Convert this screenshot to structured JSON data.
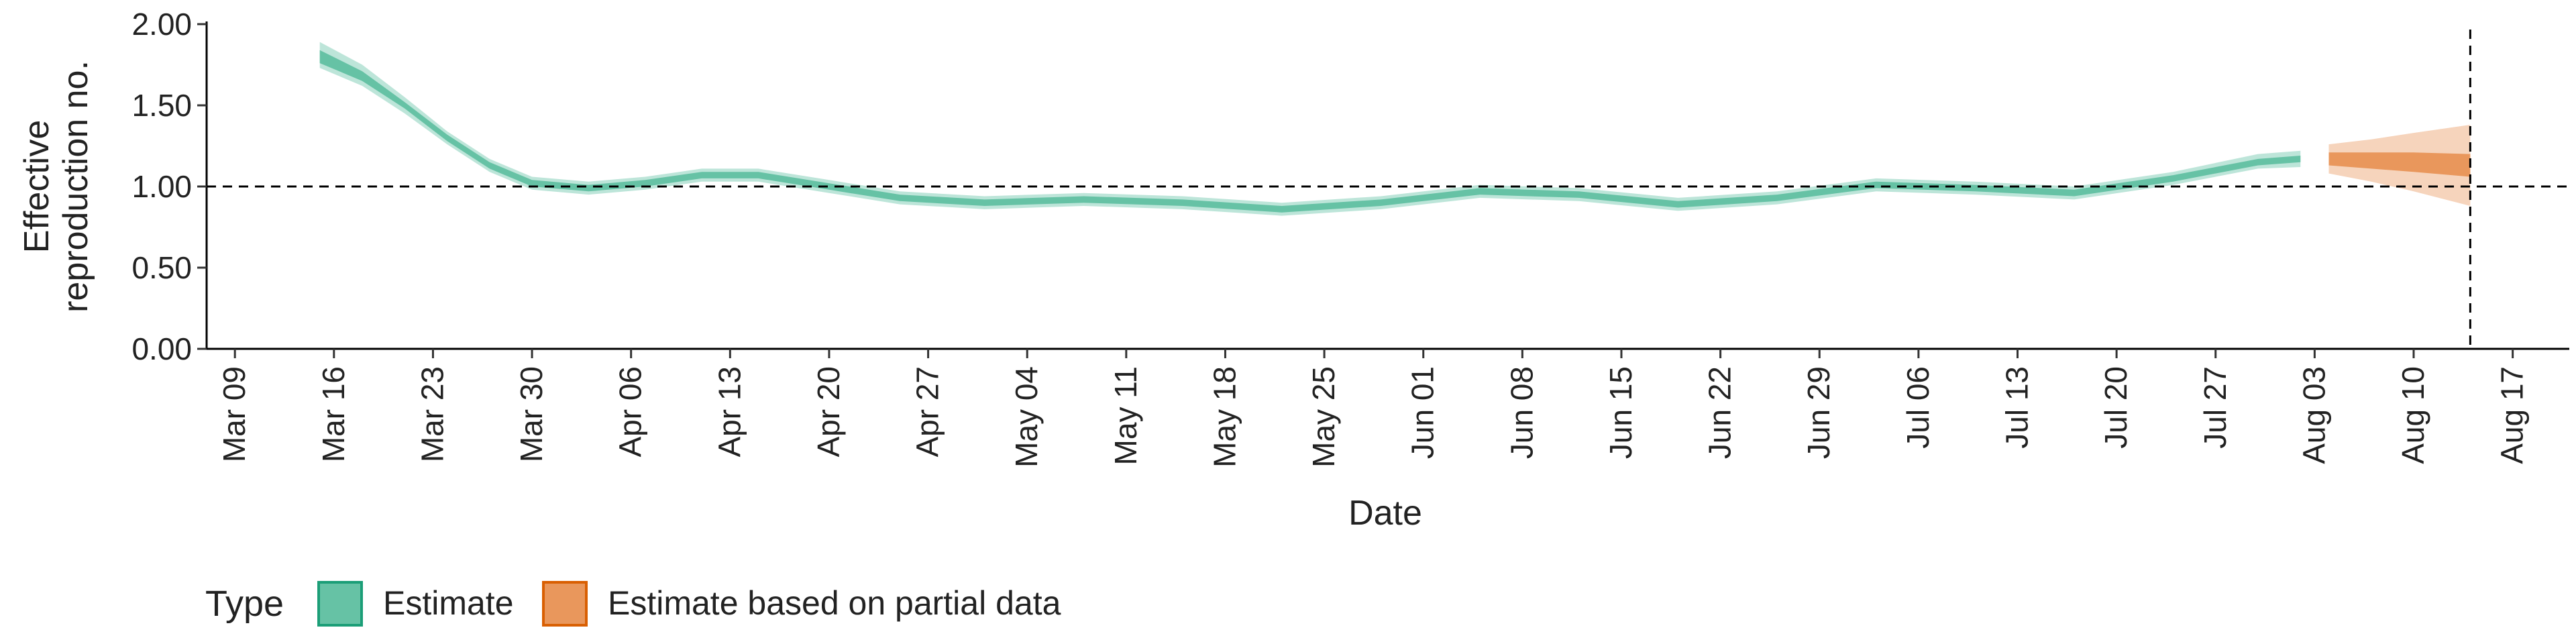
{
  "chart_data": {
    "type": "area",
    "title": "",
    "xlabel": "Date",
    "ylabel_lines": [
      "Effective",
      "reproduction no."
    ],
    "ylim": [
      0,
      2
    ],
    "y_ticks": [
      0,
      0.5,
      1,
      1.5,
      2
    ],
    "y_tick_labels": [
      "0.00",
      "0.50",
      "1.00",
      "1.50",
      "2.00"
    ],
    "xlim": [
      "2020-03-07",
      "2020-08-21"
    ],
    "x_ticks": [
      "2020-03-09",
      "2020-03-16",
      "2020-03-23",
      "2020-03-30",
      "2020-04-06",
      "2020-04-13",
      "2020-04-20",
      "2020-04-27",
      "2020-05-04",
      "2020-05-11",
      "2020-05-18",
      "2020-05-25",
      "2020-06-01",
      "2020-06-08",
      "2020-06-15",
      "2020-06-22",
      "2020-06-29",
      "2020-07-06",
      "2020-07-13",
      "2020-07-20",
      "2020-07-27",
      "2020-08-03",
      "2020-08-10",
      "2020-08-17"
    ],
    "x_tick_labels": [
      "Mar 09",
      "Mar 16",
      "Mar 23",
      "Mar 30",
      "Apr 06",
      "Apr 13",
      "Apr 20",
      "Apr 27",
      "May 04",
      "May 11",
      "May 18",
      "May 25",
      "Jun 01",
      "Jun 08",
      "Jun 15",
      "Jun 22",
      "Jun 29",
      "Jul 06",
      "Jul 13",
      "Jul 20",
      "Jul 27",
      "Aug 03",
      "Aug 10",
      "Aug 17"
    ],
    "reference_line_y": 1.0,
    "reference_line_x": "2020-08-14",
    "grid": false,
    "legend": {
      "title": "Type",
      "position": "bottom-left",
      "entries": [
        {
          "label": "Estimate",
          "fill": "#66c2a5",
          "stroke": "#1b9e77"
        },
        {
          "label": "Estimate based on partial data",
          "fill": "#e9975c",
          "stroke": "#d95f02"
        }
      ]
    },
    "series": [
      {
        "name": "Estimate",
        "color_inner": "#66c2a5",
        "color_outer": "#b2e0d2",
        "points": [
          {
            "x": "2020-03-15",
            "median": 1.8,
            "lo50": 1.76,
            "hi50": 1.84,
            "lo90": 1.73,
            "hi90": 1.89
          },
          {
            "x": "2020-03-18",
            "median": 1.68,
            "lo50": 1.65,
            "hi50": 1.71,
            "lo90": 1.62,
            "hi90": 1.75
          },
          {
            "x": "2020-03-21",
            "median": 1.5,
            "lo50": 1.48,
            "hi50": 1.52,
            "lo90": 1.45,
            "hi90": 1.55
          },
          {
            "x": "2020-03-24",
            "median": 1.3,
            "lo50": 1.28,
            "hi50": 1.32,
            "lo90": 1.26,
            "hi90": 1.34
          },
          {
            "x": "2020-03-27",
            "median": 1.13,
            "lo50": 1.11,
            "hi50": 1.15,
            "lo90": 1.09,
            "hi90": 1.17
          },
          {
            "x": "2020-03-30",
            "median": 1.02,
            "lo50": 1.0,
            "hi50": 1.04,
            "lo90": 0.98,
            "hi90": 1.06
          },
          {
            "x": "2020-04-03",
            "median": 0.99,
            "lo50": 0.97,
            "hi50": 1.01,
            "lo90": 0.95,
            "hi90": 1.03
          },
          {
            "x": "2020-04-07",
            "median": 1.02,
            "lo50": 1.0,
            "hi50": 1.04,
            "lo90": 0.98,
            "hi90": 1.06
          },
          {
            "x": "2020-04-11",
            "median": 1.07,
            "lo50": 1.05,
            "hi50": 1.09,
            "lo90": 1.03,
            "hi90": 1.11
          },
          {
            "x": "2020-04-15",
            "median": 1.07,
            "lo50": 1.05,
            "hi50": 1.09,
            "lo90": 1.03,
            "hi90": 1.11
          },
          {
            "x": "2020-04-20",
            "median": 1.0,
            "lo50": 0.98,
            "hi50": 1.02,
            "lo90": 0.96,
            "hi90": 1.04
          },
          {
            "x": "2020-04-25",
            "median": 0.93,
            "lo50": 0.91,
            "hi50": 0.95,
            "lo90": 0.89,
            "hi90": 0.97
          },
          {
            "x": "2020-05-01",
            "median": 0.9,
            "lo50": 0.88,
            "hi50": 0.92,
            "lo90": 0.86,
            "hi90": 0.94
          },
          {
            "x": "2020-05-08",
            "median": 0.92,
            "lo50": 0.9,
            "hi50": 0.94,
            "lo90": 0.88,
            "hi90": 0.96
          },
          {
            "x": "2020-05-15",
            "median": 0.9,
            "lo50": 0.88,
            "hi50": 0.92,
            "lo90": 0.86,
            "hi90": 0.94
          },
          {
            "x": "2020-05-22",
            "median": 0.86,
            "lo50": 0.84,
            "hi50": 0.88,
            "lo90": 0.82,
            "hi90": 0.9
          },
          {
            "x": "2020-05-29",
            "median": 0.9,
            "lo50": 0.88,
            "hi50": 0.92,
            "lo90": 0.86,
            "hi90": 0.94
          },
          {
            "x": "2020-06-05",
            "median": 0.97,
            "lo50": 0.95,
            "hi50": 0.99,
            "lo90": 0.93,
            "hi90": 1.01
          },
          {
            "x": "2020-06-12",
            "median": 0.95,
            "lo50": 0.93,
            "hi50": 0.97,
            "lo90": 0.91,
            "hi90": 0.99
          },
          {
            "x": "2020-06-19",
            "median": 0.89,
            "lo50": 0.87,
            "hi50": 0.91,
            "lo90": 0.85,
            "hi90": 0.93
          },
          {
            "x": "2020-06-26",
            "median": 0.93,
            "lo50": 0.91,
            "hi50": 0.95,
            "lo90": 0.89,
            "hi90": 0.97
          },
          {
            "x": "2020-07-03",
            "median": 1.01,
            "lo50": 0.99,
            "hi50": 1.03,
            "lo90": 0.97,
            "hi90": 1.05
          },
          {
            "x": "2020-07-10",
            "median": 0.99,
            "lo50": 0.97,
            "hi50": 1.01,
            "lo90": 0.95,
            "hi90": 1.03
          },
          {
            "x": "2020-07-17",
            "median": 0.96,
            "lo50": 0.94,
            "hi50": 0.98,
            "lo90": 0.92,
            "hi90": 1.0
          },
          {
            "x": "2020-07-24",
            "median": 1.05,
            "lo50": 1.03,
            "hi50": 1.07,
            "lo90": 1.01,
            "hi90": 1.09
          },
          {
            "x": "2020-07-30",
            "median": 1.15,
            "lo50": 1.13,
            "hi50": 1.17,
            "lo90": 1.11,
            "hi90": 1.2
          },
          {
            "x": "2020-08-02",
            "median": 1.17,
            "lo50": 1.15,
            "hi50": 1.19,
            "lo90": 1.12,
            "hi90": 1.22
          }
        ]
      },
      {
        "name": "Estimate based on partial data",
        "color_inner": "#e9975c",
        "color_outer": "#f5cdb0",
        "points": [
          {
            "x": "2020-08-04",
            "median": 1.17,
            "lo50": 1.13,
            "hi50": 1.21,
            "lo90": 1.08,
            "hi90": 1.26
          },
          {
            "x": "2020-08-07",
            "median": 1.16,
            "lo50": 1.11,
            "hi50": 1.21,
            "lo90": 1.03,
            "hi90": 1.29
          },
          {
            "x": "2020-08-10",
            "median": 1.15,
            "lo50": 1.09,
            "hi50": 1.21,
            "lo90": 0.97,
            "hi90": 1.33
          },
          {
            "x": "2020-08-14",
            "median": 1.13,
            "lo50": 1.06,
            "hi50": 1.2,
            "lo90": 0.88,
            "hi90": 1.38
          }
        ]
      }
    ]
  }
}
